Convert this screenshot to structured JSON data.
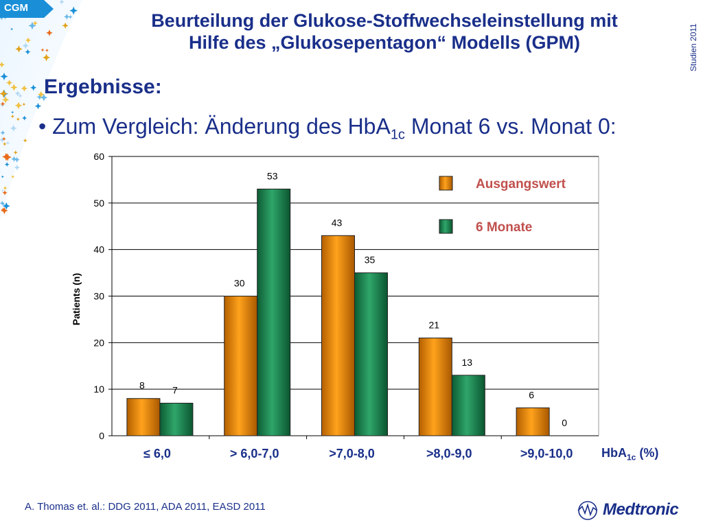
{
  "badge": {
    "label": "CGM"
  },
  "header": {
    "title_line1": "Beurteilung der Glukose-Stoffwechseleinstellung mit",
    "title_line2": "Hilfe des „Glukosepentagon“ Modells (GPM)",
    "side_label": "Studien 2011"
  },
  "section": {
    "heading": "Ergebnisse:",
    "bullet_prefix": "• Zum Vergleich: Änderung des HbA",
    "bullet_sub": "1c",
    "bullet_suffix": " Monat 6 vs. Monat 0:"
  },
  "chart_data": {
    "type": "bar",
    "categories": [
      "≤ 6,0",
      "> 6,0-7,0",
      ">7,0-8,0",
      ">8,0-9,0",
      ">9,0-10,0"
    ],
    "series": [
      {
        "name": "Ausgangswert",
        "values": [
          8,
          30,
          43,
          21,
          6
        ],
        "color": "#f08a00"
      },
      {
        "name": "6 Monate",
        "values": [
          7,
          53,
          35,
          13,
          0
        ],
        "color": "#1f8a55"
      }
    ],
    "ylabel": "Patients (n)",
    "xlabel_main": "HbA",
    "xlabel_sub": "1c",
    "xlabel_suffix": " (%)",
    "ylim": [
      0,
      60
    ],
    "yticks": [
      0,
      10,
      20,
      30,
      40,
      50,
      60
    ],
    "grid": true,
    "legend_position": "top-right",
    "legend_label_color": "#c0504d"
  },
  "footer": {
    "citation": "A. Thomas et. al.: DDG 2011, ADA  2011, EASD 2011",
    "logo_text": "Medtronic"
  },
  "colors": {
    "title": "#1a2f8a",
    "accent_blue": "#1a8fd8"
  }
}
